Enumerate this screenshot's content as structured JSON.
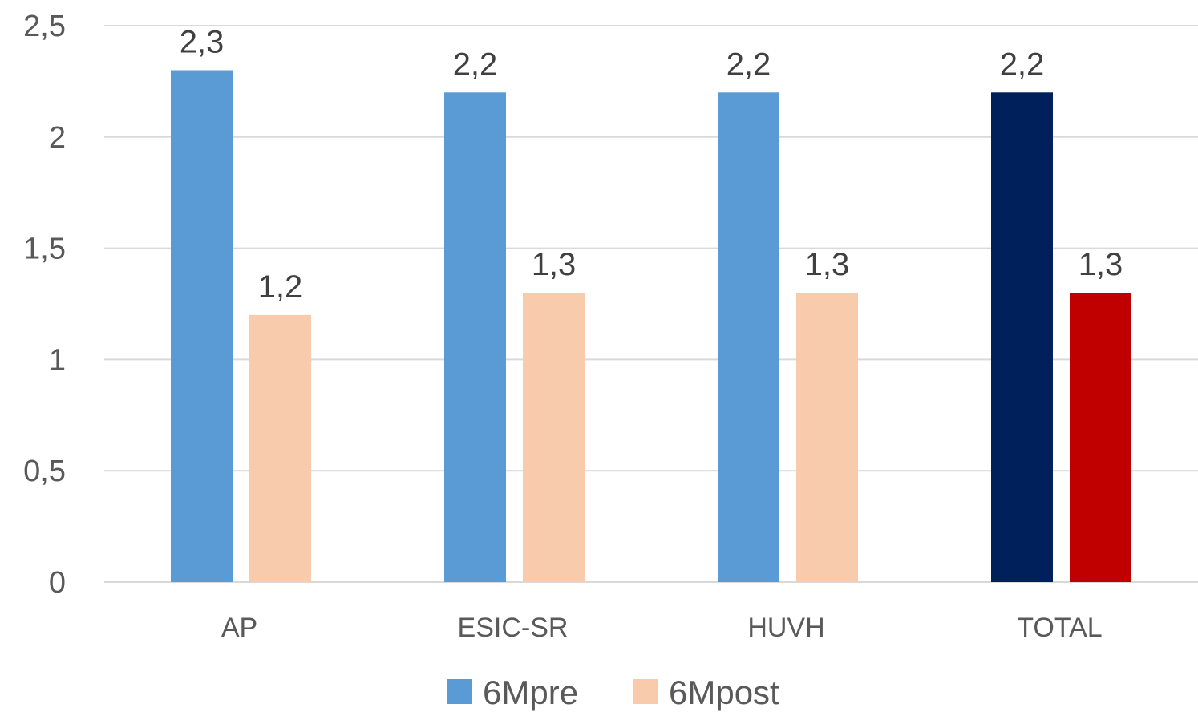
{
  "chart_data": {
    "type": "bar",
    "categories": [
      "AP",
      "ESIC-SR",
      "HUVH",
      "TOTAL"
    ],
    "series": [
      {
        "name": "6Mpre",
        "values": [
          2.3,
          2.2,
          2.2,
          2.2
        ],
        "labels": [
          "2,3",
          "2,2",
          "2,2",
          "2,2"
        ],
        "color": "#5b9bd5",
        "point_colors": [
          "#5b9bd5",
          "#5b9bd5",
          "#5b9bd5",
          "#00205b"
        ]
      },
      {
        "name": "6Mpost",
        "values": [
          1.2,
          1.3,
          1.3,
          1.3
        ],
        "labels": [
          "1,2",
          "1,3",
          "1,3",
          "1,3"
        ],
        "color": "#f8cbad",
        "point_colors": [
          "#f8cbad",
          "#f8cbad",
          "#f8cbad",
          "#c00000"
        ]
      }
    ],
    "ylim": [
      0,
      2.5
    ],
    "yticks": [
      0,
      0.5,
      1,
      1.5,
      2,
      2.5
    ],
    "ytick_labels": [
      "0",
      "0,5",
      "1",
      "1,5",
      "2",
      "2,5"
    ],
    "grid": true,
    "legend_position": "bottom",
    "title": "",
    "xlabel": "",
    "ylabel": ""
  }
}
